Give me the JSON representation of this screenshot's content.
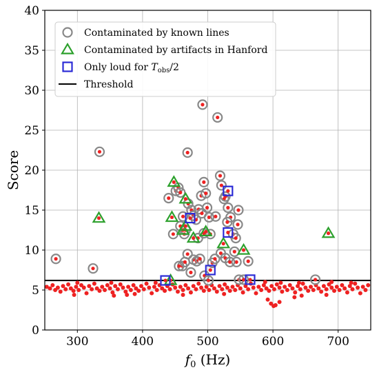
{
  "chart_data": {
    "type": "scatter",
    "xlabel": "f_0 (Hz)",
    "ylabel": "Score",
    "xlim": [
      250,
      750
    ],
    "ylim": [
      0,
      40
    ],
    "xticks": [
      300,
      400,
      500,
      600,
      700
    ],
    "yticks": [
      0,
      5,
      10,
      15,
      20,
      25,
      30,
      35,
      40
    ],
    "grid": true,
    "legend_position": "top-left",
    "threshold": 6.2,
    "legend": [
      {
        "key": "known_lines",
        "label": "Contaminated by known lines",
        "marker": "circle",
        "color": "#888888"
      },
      {
        "key": "hanford",
        "label": "Contaminated by artifacts in Hanford",
        "marker": "triangle",
        "color": "#2ca02c"
      },
      {
        "key": "half_time",
        "label": "Only loud for T_obs/2",
        "marker": "square",
        "color": "#2b2bd6"
      },
      {
        "key": "threshold",
        "label": "Threshold",
        "marker": "line",
        "color": "#000000"
      }
    ],
    "series": [
      {
        "key": "known_lines",
        "points": [
          [
            267,
            8.9
          ],
          [
            324,
            7.7
          ],
          [
            334,
            22.3
          ],
          [
            469,
            22.2
          ],
          [
            492,
            28.2
          ],
          [
            515,
            26.6
          ],
          [
            440,
            16.5
          ],
          [
            447,
            12.0
          ],
          [
            451,
            17.4
          ],
          [
            455,
            17.8
          ],
          [
            458,
            17.2
          ],
          [
            462,
            14.2
          ],
          [
            458,
            13.0
          ],
          [
            464,
            12.0
          ],
          [
            470,
            15.8
          ],
          [
            475,
            15.0
          ],
          [
            478,
            14.3
          ],
          [
            482,
            13.8
          ],
          [
            486,
            15.1
          ],
          [
            490,
            16.8
          ],
          [
            494,
            18.5
          ],
          [
            497,
            17.1
          ],
          [
            499,
            15.3
          ],
          [
            491,
            14.6
          ],
          [
            502,
            14.1
          ],
          [
            504,
            12.0
          ],
          [
            494,
            12.1
          ],
          [
            512,
            14.2
          ],
          [
            519,
            19.3
          ],
          [
            521,
            18.1
          ],
          [
            525,
            16.4
          ],
          [
            527,
            16.7
          ],
          [
            531,
            15.3
          ],
          [
            535,
            14.1
          ],
          [
            539,
            12.0
          ],
          [
            546,
            13.2
          ],
          [
            547,
            15.0
          ],
          [
            541,
            9.8
          ],
          [
            544,
            8.5
          ],
          [
            562,
            8.6
          ],
          [
            461,
            8.0
          ],
          [
            465,
            8.5
          ],
          [
            469,
            9.5
          ],
          [
            474,
            7.2
          ],
          [
            478,
            8.8
          ],
          [
            483,
            8.6
          ],
          [
            488,
            8.9
          ],
          [
            495,
            6.8
          ],
          [
            501,
            6.2
          ],
          [
            507,
            8.4
          ],
          [
            511,
            8.9
          ],
          [
            520,
            9.6
          ],
          [
            527,
            9.0
          ],
          [
            534,
            8.5
          ],
          [
            548,
            6.3
          ],
          [
            555,
            6.3
          ],
          [
            665,
            6.3
          ],
          [
            485,
            11.5
          ],
          [
            466,
            12.5
          ],
          [
            456,
            8.0
          ],
          [
            530,
            13.5
          ],
          [
            543,
            11.5
          ]
        ]
      },
      {
        "key": "hanford",
        "points": [
          [
            333,
            14.0
          ],
          [
            448,
            18.5
          ],
          [
            445,
            14.1
          ],
          [
            462,
            12.5
          ],
          [
            466,
            13.0
          ],
          [
            466,
            16.4
          ],
          [
            478,
            11.5
          ],
          [
            497,
            12.3
          ],
          [
            524,
            10.8
          ],
          [
            555,
            10.0
          ],
          [
            685,
            12.1
          ],
          [
            443,
            6.2
          ]
        ]
      },
      {
        "key": "half_time",
        "points": [
          [
            435,
            6.2
          ],
          [
            473,
            14.0
          ],
          [
            504,
            7.5
          ],
          [
            531,
            17.4
          ],
          [
            531,
            12.2
          ],
          [
            565,
            6.3
          ]
        ]
      },
      {
        "key": "background",
        "points": [
          [
            253,
            5.4
          ],
          [
            258,
            5.2
          ],
          [
            262,
            5.6
          ],
          [
            266,
            5.0
          ],
          [
            270,
            5.3
          ],
          [
            274,
            4.8
          ],
          [
            278,
            5.5
          ],
          [
            282,
            5.1
          ],
          [
            286,
            5.7
          ],
          [
            290,
            5.2
          ],
          [
            294,
            4.9
          ],
          [
            298,
            5.4
          ],
          [
            302,
            5.0
          ],
          [
            306,
            5.6
          ],
          [
            310,
            5.3
          ],
          [
            314,
            4.6
          ],
          [
            318,
            5.5
          ],
          [
            322,
            5.1
          ],
          [
            326,
            5.8
          ],
          [
            330,
            5.2
          ],
          [
            334,
            4.9
          ],
          [
            338,
            5.4
          ],
          [
            342,
            5.0
          ],
          [
            346,
            5.6
          ],
          [
            350,
            5.2
          ],
          [
            354,
            4.7
          ],
          [
            358,
            5.5
          ],
          [
            362,
            5.1
          ],
          [
            366,
            5.7
          ],
          [
            370,
            5.3
          ],
          [
            374,
            4.8
          ],
          [
            378,
            5.4
          ],
          [
            382,
            5.0
          ],
          [
            386,
            5.6
          ],
          [
            390,
            5.2
          ],
          [
            394,
            4.9
          ],
          [
            398,
            5.5
          ],
          [
            402,
            5.1
          ],
          [
            406,
            5.8
          ],
          [
            410,
            5.3
          ],
          [
            414,
            4.6
          ],
          [
            418,
            5.4
          ],
          [
            422,
            5.0
          ],
          [
            426,
            5.6
          ],
          [
            430,
            5.2
          ],
          [
            434,
            4.9
          ],
          [
            438,
            5.5
          ],
          [
            442,
            5.1
          ],
          [
            446,
            5.7
          ],
          [
            450,
            5.3
          ],
          [
            454,
            4.8
          ],
          [
            458,
            5.4
          ],
          [
            462,
            5.0
          ],
          [
            466,
            5.6
          ],
          [
            470,
            5.2
          ],
          [
            474,
            4.7
          ],
          [
            478,
            5.5
          ],
          [
            482,
            5.1
          ],
          [
            486,
            5.8
          ],
          [
            490,
            5.3
          ],
          [
            494,
            4.9
          ],
          [
            498,
            5.4
          ],
          [
            502,
            5.0
          ],
          [
            506,
            5.6
          ],
          [
            510,
            5.2
          ],
          [
            514,
            4.8
          ],
          [
            518,
            5.5
          ],
          [
            522,
            5.1
          ],
          [
            526,
            5.7
          ],
          [
            530,
            5.3
          ],
          [
            534,
            4.9
          ],
          [
            538,
            5.4
          ],
          [
            542,
            5.0
          ],
          [
            546,
            5.6
          ],
          [
            550,
            5.2
          ],
          [
            554,
            4.7
          ],
          [
            558,
            5.5
          ],
          [
            562,
            5.1
          ],
          [
            566,
            5.8
          ],
          [
            570,
            5.3
          ],
          [
            574,
            4.6
          ],
          [
            578,
            5.4
          ],
          [
            582,
            5.0
          ],
          [
            586,
            5.6
          ],
          [
            590,
            5.2
          ],
          [
            594,
            4.9
          ],
          [
            598,
            5.5
          ],
          [
            602,
            5.1
          ],
          [
            606,
            5.7
          ],
          [
            610,
            5.3
          ],
          [
            614,
            4.8
          ],
          [
            618,
            5.4
          ],
          [
            622,
            5.0
          ],
          [
            626,
            5.6
          ],
          [
            630,
            5.2
          ],
          [
            634,
            4.7
          ],
          [
            638,
            5.5
          ],
          [
            642,
            5.1
          ],
          [
            646,
            5.8
          ],
          [
            650,
            5.3
          ],
          [
            654,
            4.9
          ],
          [
            658,
            5.4
          ],
          [
            662,
            5.0
          ],
          [
            666,
            5.6
          ],
          [
            670,
            5.2
          ],
          [
            674,
            4.8
          ],
          [
            678,
            5.5
          ],
          [
            682,
            5.1
          ],
          [
            686,
            5.7
          ],
          [
            690,
            5.3
          ],
          [
            694,
            4.9
          ],
          [
            698,
            5.4
          ],
          [
            702,
            5.0
          ],
          [
            706,
            5.6
          ],
          [
            710,
            5.2
          ],
          [
            714,
            4.7
          ],
          [
            718,
            5.5
          ],
          [
            722,
            5.1
          ],
          [
            726,
            5.8
          ],
          [
            730,
            5.3
          ],
          [
            734,
            4.6
          ],
          [
            738,
            5.4
          ],
          [
            742,
            5.0
          ],
          [
            746,
            5.6
          ],
          [
            295,
            4.4
          ],
          [
            356,
            4.3
          ],
          [
            376,
            4.4
          ],
          [
            388,
            4.5
          ],
          [
            462,
            4.4
          ],
          [
            525,
            4.5
          ],
          [
            592,
            3.8
          ],
          [
            597,
            3.3
          ],
          [
            601,
            3.0
          ],
          [
            604,
            3.1
          ],
          [
            610,
            3.5
          ],
          [
            633,
            4.1
          ],
          [
            644,
            4.3
          ],
          [
            682,
            4.4
          ],
          [
            300,
            5.9
          ],
          [
            352,
            5.9
          ],
          [
            420,
            5.9
          ],
          [
            588,
            6.0
          ],
          [
            612,
            5.9
          ],
          [
            640,
            5.9
          ],
          [
            690,
            6.0
          ],
          [
            720,
            5.9
          ]
        ]
      }
    ]
  }
}
